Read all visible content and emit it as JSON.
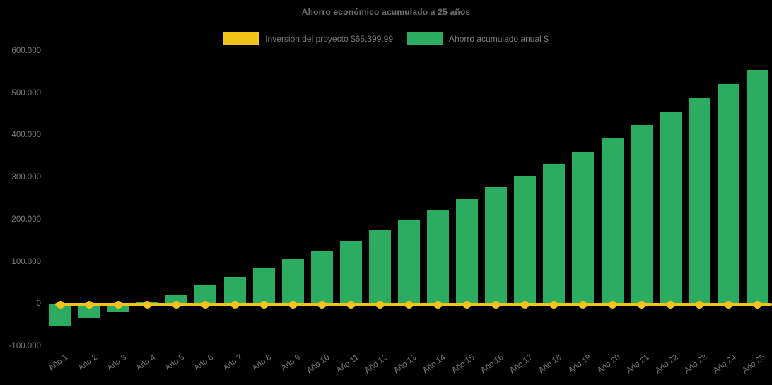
{
  "title": "Ahorro económico acumulado a 25 años",
  "legend": [
    {
      "label": "Inversión del proyecto $65,399.99",
      "color": "#F2C31B"
    },
    {
      "label": "Ahorro acumulado anual $",
      "color": "#2BAC60"
    }
  ],
  "colors": {
    "background": "#000000",
    "bar": "#2BAC60",
    "line": "#F2C31B",
    "axis_text": "#7B7B7B",
    "title_text": "#6E6E6E"
  },
  "chart_data": {
    "type": "bar",
    "title": "Ahorro económico acumulado a 25 años",
    "categories": [
      "Año 1",
      "Año 2",
      "Año 3",
      "Año 4",
      "Año 5",
      "Año 6",
      "Año 7",
      "Año 8",
      "Año 9",
      "Año 10",
      "Año 11",
      "Año 12",
      "Año 13",
      "Año 14",
      "Año 15",
      "Año 16",
      "Año 17",
      "Año 18",
      "Año 19",
      "Año 20",
      "Año 21",
      "Año 22",
      "Año 23",
      "Año 24",
      "Año 25"
    ],
    "series": [
      {
        "name": "Inversión del proyecto $65,399.99",
        "type": "line",
        "color": "#F2C31B",
        "values": [
          0,
          0,
          0,
          0,
          0,
          0,
          0,
          0,
          0,
          0,
          0,
          0,
          0,
          0,
          0,
          0,
          0,
          0,
          0,
          0,
          0,
          0,
          0,
          0,
          0
        ]
      },
      {
        "name": "Ahorro acumulado anual $",
        "type": "bar",
        "color": "#2BAC60",
        "values": [
          -49000,
          -31000,
          -16000,
          7000,
          24000,
          45000,
          65000,
          86000,
          107000,
          128000,
          152000,
          176000,
          200000,
          225000,
          251000,
          278000,
          306000,
          334000,
          363000,
          394000,
          426000,
          457000,
          489000,
          523000,
          557000
        ]
      }
    ],
    "xlabel": "",
    "ylabel": "",
    "ylim": [
      -100000,
      600000
    ],
    "yticks": [
      600000,
      500000,
      400000,
      300000,
      200000,
      100000,
      0,
      -100000
    ],
    "ytick_labels": [
      "600.000",
      "500.000",
      "400.000",
      "300.000",
      "200.000",
      "100.000",
      "0",
      "-100.000"
    ],
    "grid": false,
    "legend_position": "top",
    "x_label_rotation_deg": -36
  }
}
